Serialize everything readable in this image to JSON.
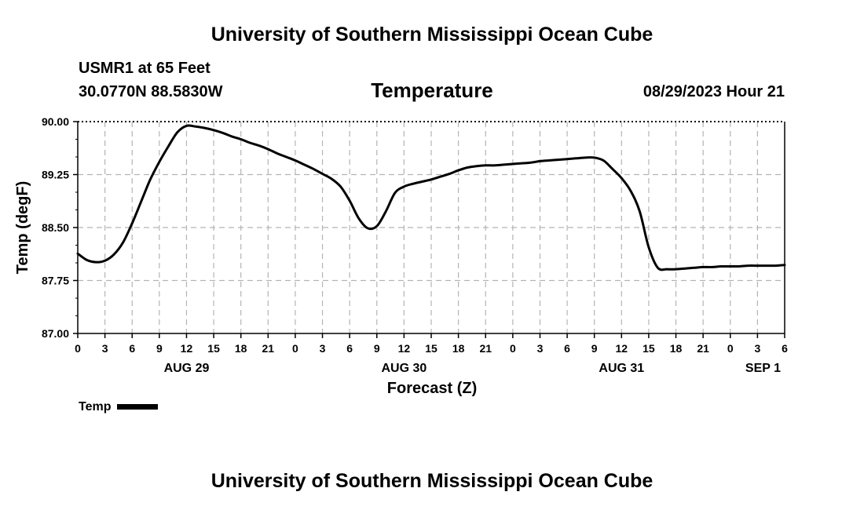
{
  "page": {
    "title_top": "University of Southern Mississippi Ocean Cube",
    "title_bottom": "University of Southern Mississippi Ocean Cube",
    "station": "USMR1 at 65 Feet",
    "coords": "30.0770N  88.5830W",
    "datetime": "08/29/2023 Hour 21"
  },
  "chart_data": {
    "type": "line",
    "title": "Temperature",
    "xlabel": "Forecast (Z)",
    "ylabel": "Temp (degF)",
    "ylim": [
      87.0,
      90.0
    ],
    "xlim": [
      0,
      78
    ],
    "x_unit": "hours since AUG 29 00Z",
    "yticks": [
      87.0,
      87.75,
      88.5,
      89.25,
      90.0
    ],
    "ytick_labels": [
      "87.00",
      "87.75",
      "88.50",
      "89.25",
      "90.00"
    ],
    "xticks": [
      0,
      3,
      6,
      9,
      12,
      15,
      18,
      21,
      24,
      27,
      30,
      33,
      36,
      39,
      42,
      45,
      48,
      51,
      54,
      57,
      60,
      63,
      66,
      69,
      72,
      75,
      78
    ],
    "xtick_labels": [
      "0",
      "3",
      "6",
      "9",
      "12",
      "15",
      "18",
      "21",
      "0",
      "3",
      "6",
      "9",
      "12",
      "15",
      "18",
      "21",
      "0",
      "3",
      "6",
      "9",
      "12",
      "15",
      "18",
      "21",
      "0",
      "3",
      "6"
    ],
    "date_labels": [
      {
        "x": 12,
        "label": "AUG 29"
      },
      {
        "x": 36,
        "label": "AUG 30"
      },
      {
        "x": 60,
        "label": "AUG 31"
      },
      {
        "x": 78,
        "label": "SEP 1"
      }
    ],
    "grid": true,
    "legend": {
      "position": "bottom-left"
    },
    "series": [
      {
        "name": "Temp",
        "color": "#000000",
        "x": [
          0,
          1,
          2,
          3,
          4,
          5,
          6,
          7,
          8,
          9,
          10,
          11,
          12,
          13,
          14,
          15,
          16,
          17,
          18,
          19,
          20,
          21,
          22,
          23,
          24,
          25,
          26,
          27,
          28,
          29,
          30,
          31,
          32,
          33,
          34,
          35,
          36,
          37,
          38,
          39,
          40,
          41,
          42,
          43,
          44,
          45,
          46,
          47,
          48,
          49,
          50,
          51,
          52,
          53,
          54,
          55,
          56,
          57,
          58,
          59,
          60,
          61,
          62,
          63,
          64,
          65,
          66,
          67,
          68,
          69,
          70,
          71,
          72,
          73,
          74,
          75,
          76,
          77,
          78
        ],
        "values": [
          88.13,
          88.04,
          88.01,
          88.03,
          88.12,
          88.29,
          88.56,
          88.87,
          89.18,
          89.43,
          89.65,
          89.85,
          89.94,
          89.93,
          89.91,
          89.88,
          89.84,
          89.79,
          89.75,
          89.7,
          89.66,
          89.61,
          89.55,
          89.5,
          89.45,
          89.39,
          89.33,
          89.26,
          89.19,
          89.08,
          88.88,
          88.63,
          88.49,
          88.52,
          88.73,
          88.99,
          89.08,
          89.12,
          89.15,
          89.18,
          89.22,
          89.26,
          89.31,
          89.35,
          89.37,
          89.38,
          89.38,
          89.39,
          89.4,
          89.41,
          89.42,
          89.44,
          89.45,
          89.46,
          89.47,
          89.48,
          89.49,
          89.49,
          89.45,
          89.33,
          89.2,
          89.02,
          88.73,
          88.22,
          87.93,
          87.91,
          87.91,
          87.92,
          87.93,
          87.94,
          87.94,
          87.95,
          87.95,
          87.95,
          87.96,
          87.96,
          87.96,
          87.96,
          87.97
        ]
      }
    ]
  }
}
